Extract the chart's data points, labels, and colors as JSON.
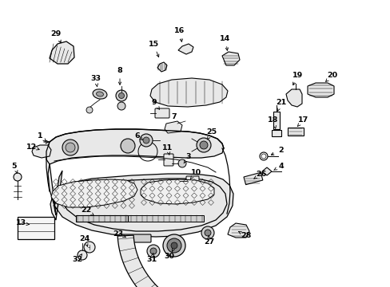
{
  "bg_color": "#ffffff",
  "fig_width": 4.89,
  "fig_height": 3.6,
  "dpi": 100,
  "black": "#000000",
  "gray_light": "#e8e8e8",
  "gray_mid": "#d0d0d0",
  "leader_lines": [
    [
      "29",
      70,
      42,
      70,
      63,
      83,
      80
    ],
    [
      "33",
      120,
      98,
      120,
      112,
      128,
      120
    ],
    [
      "8",
      148,
      93,
      148,
      107,
      152,
      118
    ],
    [
      "15",
      195,
      57,
      195,
      70,
      198,
      83
    ],
    [
      "16",
      227,
      38,
      227,
      52,
      222,
      65
    ],
    [
      "14",
      285,
      48,
      285,
      60,
      278,
      72
    ],
    [
      "19",
      373,
      98,
      364,
      110,
      358,
      118
    ],
    [
      "20",
      415,
      96,
      400,
      107,
      390,
      112
    ],
    [
      "21",
      352,
      130,
      347,
      140,
      344,
      150
    ],
    [
      "18",
      345,
      152,
      345,
      158,
      345,
      163
    ],
    [
      "17",
      380,
      152,
      370,
      158,
      362,
      163
    ],
    [
      "25",
      267,
      168,
      260,
      175,
      256,
      182
    ],
    [
      "2",
      355,
      190,
      345,
      197,
      338,
      202
    ],
    [
      "4",
      355,
      210,
      345,
      216,
      338,
      220
    ],
    [
      "1",
      52,
      170,
      60,
      174,
      68,
      178
    ],
    [
      "12",
      42,
      186,
      50,
      190,
      58,
      192
    ],
    [
      "9",
      196,
      128,
      200,
      136,
      204,
      143
    ],
    [
      "7",
      218,
      148,
      218,
      157,
      215,
      162
    ],
    [
      "6",
      175,
      170,
      181,
      174,
      186,
      176
    ],
    [
      "11",
      212,
      186,
      212,
      193,
      212,
      200
    ],
    [
      "3",
      238,
      196,
      232,
      202,
      228,
      208
    ],
    [
      "10",
      248,
      218,
      243,
      223,
      240,
      228
    ],
    [
      "26",
      330,
      220,
      322,
      225,
      316,
      228
    ],
    [
      "5",
      20,
      208,
      20,
      218,
      22,
      235
    ],
    [
      "13",
      28,
      282,
      36,
      285,
      48,
      288
    ],
    [
      "22",
      110,
      263,
      118,
      267,
      128,
      270
    ],
    [
      "24",
      108,
      300,
      113,
      307,
      118,
      312
    ],
    [
      "32",
      98,
      326,
      103,
      318,
      110,
      313
    ],
    [
      "23",
      148,
      295,
      155,
      298,
      163,
      300
    ],
    [
      "31",
      192,
      328,
      192,
      320,
      193,
      313
    ],
    [
      "30",
      213,
      322,
      213,
      312,
      215,
      305
    ],
    [
      "27",
      264,
      305,
      262,
      298,
      260,
      292
    ],
    [
      "28",
      306,
      298,
      298,
      294,
      292,
      292
    ]
  ]
}
